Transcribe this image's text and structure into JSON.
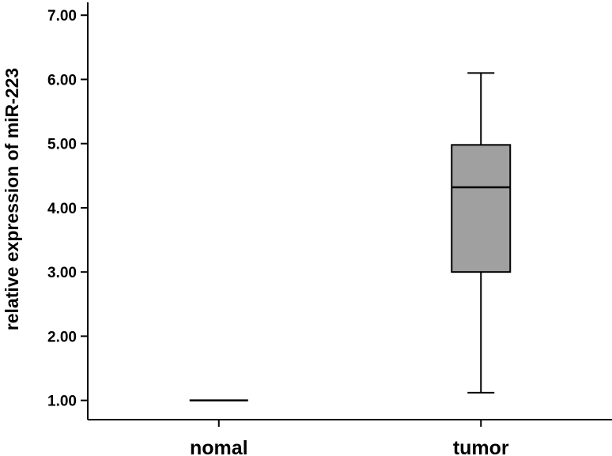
{
  "chart_data": {
    "type": "box",
    "title": "",
    "xlabel": "",
    "ylabel": "relative expression of miR-223",
    "ylim": [
      0.7,
      7.2
    ],
    "yticks": [
      "1.00",
      "2.00",
      "3.00",
      "4.00",
      "5.00",
      "6.00",
      "7.00"
    ],
    "grid": false,
    "box_color": "#a0a0a0",
    "categories": [
      "nomal",
      "tumor"
    ],
    "boxes": [
      {
        "category": "nomal",
        "min": 1.0,
        "q1": 1.0,
        "median": 1.0,
        "q3": 1.0,
        "max": 1.0
      },
      {
        "category": "tumor",
        "min": 1.12,
        "q1": 3.0,
        "median": 4.32,
        "q3": 4.98,
        "max": 6.1
      }
    ]
  }
}
